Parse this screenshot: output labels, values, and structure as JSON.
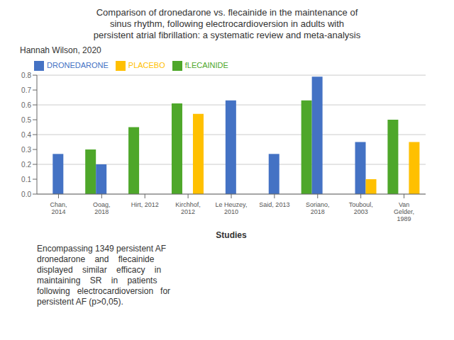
{
  "chart_data": {
    "type": "bar",
    "title": "Comparison of dronedarone vs. flecainide in the maintenance of\nsinus rhythm, following electrocardioversion in adults with\npersistent atrial fibrillation: a systematic review and meta-analysis",
    "subtitle": "Hannah Wilson, 2020",
    "xlabel": "Studies",
    "annotation": "Encompassing 1349 persistent AF\ndronedarone    and    flecainide\ndisplayed    similar    efficacy    in\nmaintaining    SR    in    patients\nfollowing   electrocardioversion   for\npersistent AF (p>0,05).",
    "categories": [
      "Chan,\n2014",
      "Ooag,\n2018",
      "Hirt, 2012",
      "Kirchhof,\n2012",
      "Le Heuzey,\n2010",
      "Said, 2013",
      "Soriano,\n2018",
      "Touboul,\n2003",
      "Van\nGelder,\n1989"
    ],
    "series": [
      {
        "name": "fLECAINIDE",
        "color": "#4EA72A",
        "values": [
          null,
          0.3,
          0.45,
          0.61,
          null,
          null,
          0.63,
          null,
          0.5
        ]
      },
      {
        "name": "DRONEDARONE",
        "color": "#4472C4",
        "values": [
          0.27,
          0.2,
          null,
          null,
          0.63,
          0.27,
          0.79,
          0.35,
          null
        ]
      },
      {
        "name": "PLACEBO",
        "color": "#FFC000",
        "values": [
          null,
          null,
          null,
          0.54,
          null,
          null,
          null,
          0.1,
          0.35
        ]
      }
    ],
    "ylim": [
      0,
      0.8
    ],
    "yticks": [
      {
        "value": 0,
        "label": "0.0"
      },
      0.1,
      0.2,
      0.3,
      0.4,
      0.5,
      0.6,
      0.7,
      0.8
    ],
    "grid": true,
    "legend": "upper left"
  }
}
